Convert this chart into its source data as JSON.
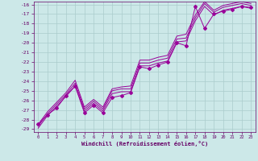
{
  "xlabel": "Windchill (Refroidissement éolien,°C)",
  "background_color": "#cce8e8",
  "line_color": "#990099",
  "grid_color": "#aacccc",
  "ylim": [
    -29,
    -16
  ],
  "xlim": [
    -0.5,
    23.5
  ],
  "yticks": [
    -16,
    -17,
    -18,
    -19,
    -20,
    -21,
    -22,
    -23,
    -24,
    -25,
    -26,
    -27,
    -28,
    -29
  ],
  "xticks": [
    0,
    1,
    2,
    3,
    4,
    5,
    6,
    7,
    8,
    9,
    10,
    11,
    12,
    13,
    14,
    15,
    16,
    17,
    18,
    19,
    20,
    21,
    22,
    23
  ],
  "obs_y": [
    -28.5,
    -27.5,
    -26.8,
    -25.5,
    -24.5,
    -27.3,
    -26.5,
    -27.3,
    -25.7,
    -25.5,
    -25.2,
    -22.5,
    -22.7,
    -22.3,
    -22.0,
    -20.0,
    -20.3,
    -16.2,
    -18.5,
    -17.0,
    -16.7,
    -16.5,
    -16.2,
    -16.3
  ],
  "line_a": [
    -28.5,
    -27.2,
    -26.2,
    -25.2,
    -23.9,
    -26.7,
    -25.9,
    -26.7,
    -24.8,
    -24.6,
    -24.5,
    -21.8,
    -21.8,
    -21.5,
    -21.3,
    -19.3,
    -19.1,
    -17.1,
    -15.7,
    -16.6,
    -16.1,
    -15.9,
    -15.7,
    -15.9
  ],
  "line_b": [
    -28.7,
    -27.4,
    -26.4,
    -25.4,
    -24.2,
    -26.9,
    -26.1,
    -26.9,
    -25.0,
    -24.8,
    -24.8,
    -22.1,
    -22.1,
    -21.8,
    -21.6,
    -19.6,
    -19.5,
    -17.4,
    -15.9,
    -16.8,
    -16.3,
    -16.1,
    -15.9,
    -16.1
  ],
  "line_c": [
    -28.9,
    -27.6,
    -26.6,
    -25.6,
    -24.5,
    -27.1,
    -26.3,
    -27.1,
    -25.3,
    -25.1,
    -25.1,
    -22.4,
    -22.4,
    -22.1,
    -21.9,
    -19.9,
    -19.8,
    -17.7,
    -16.2,
    -17.1,
    -16.6,
    -16.4,
    -16.2,
    -16.4
  ]
}
